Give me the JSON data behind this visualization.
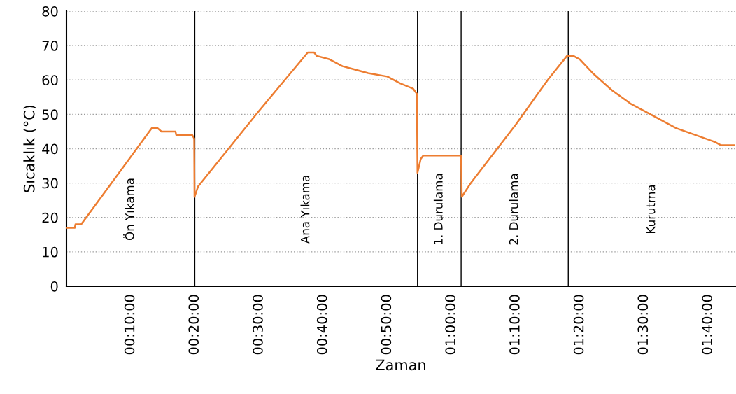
{
  "chart_data": {
    "type": "line",
    "xlabel": "Zaman",
    "ylabel": "Sıcaklık (°C)",
    "x": [
      0,
      0.0217,
      0.0233,
      0.0333,
      0.0383,
      0.2217,
      0.2367,
      0.2467,
      0.2833,
      0.285,
      0.3267,
      0.3317,
      0.3325,
      0.3417,
      0.5,
      0.6267,
      0.6433,
      0.65,
      0.6833,
      0.7167,
      0.7833,
      0.8333,
      0.8667,
      0.9,
      0.91,
      0.9117,
      0.92,
      0.9267,
      1.025,
      1.0267,
      1.05,
      1.1667,
      1.25,
      1.3,
      1.3167,
      1.3333,
      1.3667,
      1.4167,
      1.4667,
      1.5167,
      1.5833,
      1.6333,
      1.6833,
      1.7,
      1.737
    ],
    "series": [
      {
        "color": "#ed7d31",
        "values": [
          17,
          17,
          18,
          18,
          18,
          46,
          46,
          45,
          45,
          44,
          44,
          43,
          26,
          29,
          51,
          68,
          68,
          67,
          66,
          64,
          62,
          61,
          59,
          57.5,
          56,
          33,
          37,
          38,
          38,
          26,
          30,
          47,
          60,
          67,
          67,
          66,
          62,
          57,
          53,
          50,
          46,
          44,
          42,
          41,
          41
        ]
      }
    ],
    "xlim": [
      0,
      1.737
    ],
    "ylim": [
      0,
      80
    ],
    "yticks": [
      0,
      10,
      20,
      30,
      40,
      50,
      60,
      70,
      80
    ],
    "xticks": [
      {
        "value": 0.1667,
        "label": "00:10:00"
      },
      {
        "value": 0.3333,
        "label": "00:20:00"
      },
      {
        "value": 0.5,
        "label": "00:30:00"
      },
      {
        "value": 0.6667,
        "label": "00:40:00"
      },
      {
        "value": 0.8333,
        "label": "00:50:00"
      },
      {
        "value": 1.0,
        "label": "01:00:00"
      },
      {
        "value": 1.1667,
        "label": "01:10:00"
      },
      {
        "value": 1.3333,
        "label": "01:20:00"
      },
      {
        "value": 1.5,
        "label": "01:30:00"
      },
      {
        "value": 1.6667,
        "label": "01:40:00"
      }
    ],
    "grid": "y",
    "legend": false,
    "marker": "none",
    "line_style": "solid",
    "ref_lines": [
      {
        "axis": "x",
        "value": 0.3333,
        "color": "#000000"
      },
      {
        "axis": "x",
        "value": 0.9117,
        "color": "#000000"
      },
      {
        "axis": "x",
        "value": 1.025,
        "color": "#000000"
      },
      {
        "axis": "x",
        "value": 1.3033,
        "color": "#000000"
      }
    ],
    "annotations": [
      "Ön Yıkama",
      "Ana Yıkama",
      "1. Durulama",
      "2. Durulama",
      "Kurutma"
    ]
  }
}
